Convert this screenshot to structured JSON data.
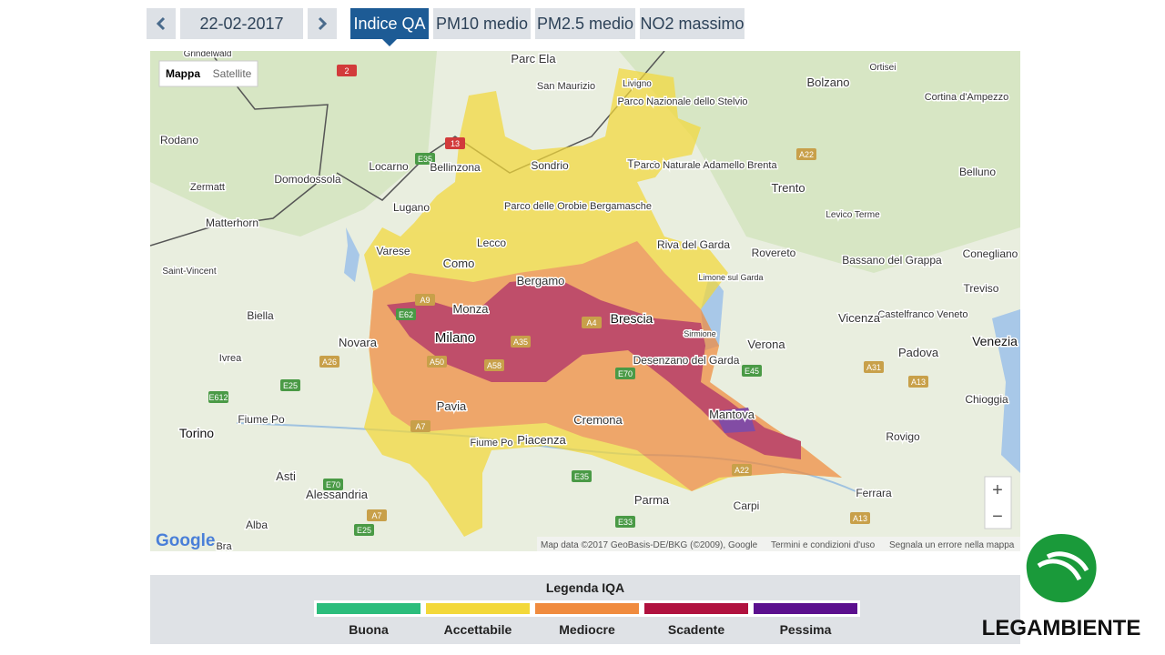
{
  "nav": {
    "date": "22-02-2017",
    "tabs": [
      "Indice QA",
      "PM10 medio",
      "PM2.5 medio",
      "NO2 massimo"
    ],
    "active_tab": 0
  },
  "map": {
    "type_buttons": [
      "Mappa",
      "Satellite"
    ],
    "labels": [
      "Grindelwald",
      "Parc Ela",
      "Livigno",
      "Ortisei",
      "Bolzano",
      "Cortina d'Ampezzo",
      "San Maurizio",
      "Parco Nazionale dello Stelvio",
      "Rodano",
      "Locarno",
      "Bellinzona",
      "Sondrio",
      "Tirano",
      "Parco Naturale Adamello Brenta",
      "Domodossola",
      "Trento",
      "Belluno",
      "Zermatt",
      "Matterhorn",
      "Parco delle Orobie Bergamasche",
      "Levico Terme",
      "Lugano",
      "Varese",
      "Como",
      "Lecco",
      "Riva del Garda",
      "Rovereto",
      "Bassano del Grappa",
      "Conegliano",
      "Saint-Vincent",
      "Limone sul Garda",
      "Bergamo",
      "Treviso",
      "Biella",
      "Monza",
      "Brescia",
      "Castelfranco Veneto",
      "Vicenza",
      "Milano",
      "Novara",
      "Sirmione",
      "Verona",
      "Padova",
      "Venezia",
      "Ivrea",
      "Desenzano del Garda",
      "Chioggia",
      "Fiume Po",
      "Pavia",
      "Mantova",
      "Cremona",
      "Torino",
      "Piacenza",
      "Fiume Po",
      "Rovigo",
      "Asti",
      "Alessandria",
      "Parma",
      "Carpi",
      "Ferrara",
      "Alba",
      "Bra"
    ],
    "roads": [
      "2",
      "13",
      "E35",
      "A22",
      "A9",
      "E62",
      "A4",
      "A35",
      "A50",
      "A58",
      "E70",
      "A26",
      "E25",
      "E612",
      "A31",
      "A13",
      "E45",
      "A7",
      "A22",
      "E35",
      "E33",
      "E70",
      "A7",
      "E25",
      "A13"
    ],
    "attribution": "Map data ©2017 GeoBasis-DE/BKG (©2009), Google",
    "terms": "Termini e condizioni d'uso",
    "report": "Segnala un errore nella mappa",
    "logo": "Google",
    "zoom_in": "+",
    "zoom_out": "−"
  },
  "legend": {
    "title": "Legenda IQA",
    "levels": [
      {
        "name": "Buona",
        "color": "#2cbd7c"
      },
      {
        "name": "Accettabile",
        "color": "#f3d83a"
      },
      {
        "name": "Mediocre",
        "color": "#f08b3e"
      },
      {
        "name": "Scadente",
        "color": "#b0113e"
      },
      {
        "name": "Pessima",
        "color": "#5b0f8e"
      }
    ]
  },
  "brand": "LEGAMBIENTE"
}
